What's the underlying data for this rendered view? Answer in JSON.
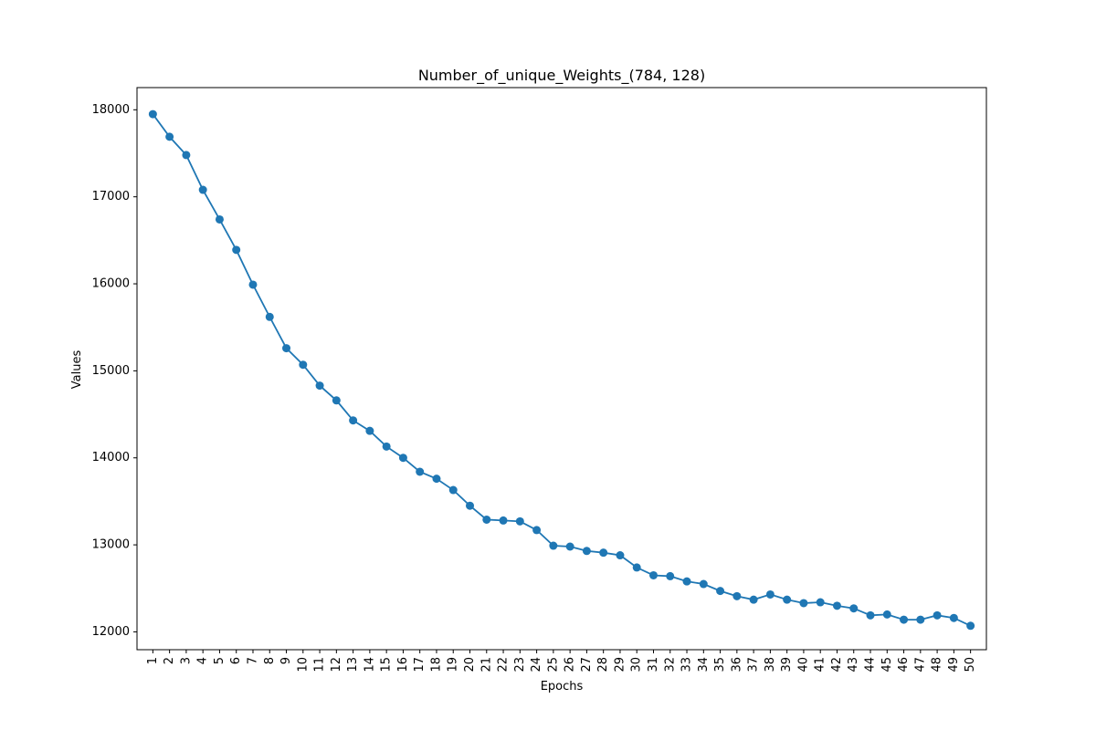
{
  "chart_data": {
    "type": "line",
    "title": "Number_of_unique_Weights_(784, 128)",
    "xlabel": "Epochs",
    "ylabel": "Values",
    "x": [
      1,
      2,
      3,
      4,
      5,
      6,
      7,
      8,
      9,
      10,
      11,
      12,
      13,
      14,
      15,
      16,
      17,
      18,
      19,
      20,
      21,
      22,
      23,
      24,
      25,
      26,
      27,
      28,
      29,
      30,
      31,
      32,
      33,
      34,
      35,
      36,
      37,
      38,
      39,
      40,
      41,
      42,
      43,
      44,
      45,
      46,
      47,
      48,
      49,
      50
    ],
    "series": [
      {
        "values": [
          17950,
          17690,
          17480,
          17080,
          16740,
          16390,
          15990,
          15620,
          15260,
          15070,
          14830,
          14660,
          14430,
          14310,
          14130,
          14000,
          13840,
          13760,
          13630,
          13450,
          13290,
          13280,
          13270,
          13170,
          12990,
          12980,
          12930,
          12910,
          12880,
          12740,
          12650,
          12640,
          12580,
          12550,
          12470,
          12410,
          12370,
          12430,
          12370,
          12330,
          12340,
          12300,
          12270,
          12190,
          12200,
          12140,
          12140,
          12190,
          12160,
          12070
        ]
      }
    ],
    "yticks": [
      12000,
      13000,
      14000,
      15000,
      16000,
      17000,
      18000
    ],
    "xlim": [
      0.05,
      50.95
    ],
    "ylim": [
      11795,
      18255
    ],
    "grid": false,
    "color": "#1f77b4"
  }
}
